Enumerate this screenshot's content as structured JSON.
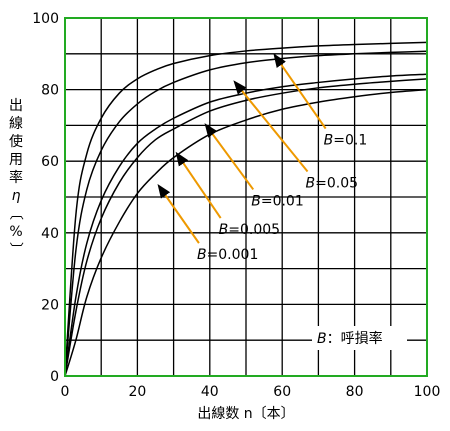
{
  "chart_data": {
    "type": "line",
    "xlabel": "出線数 n〔本〕",
    "ylabel": [
      "出",
      "線",
      "使",
      "用",
      "率",
      "η",
      "〔",
      "%",
      "〕"
    ],
    "xlim": [
      0,
      100
    ],
    "ylim": [
      0,
      100
    ],
    "xticks": [
      0,
      20,
      40,
      60,
      80,
      100
    ],
    "yticks": [
      0,
      20,
      40,
      60,
      80,
      100
    ],
    "grid": true,
    "legend_note": "B：呼損率",
    "series": [
      {
        "name": "B=0.1",
        "x": [
          0,
          3,
          6,
          10,
          15,
          20,
          25,
          30,
          40,
          50,
          60,
          70,
          80,
          90,
          100
        ],
        "y": [
          0,
          45,
          62,
          72,
          79,
          83,
          85.5,
          87.3,
          89.5,
          90.8,
          91.6,
          92.2,
          92.6,
          92.9,
          93.2
        ],
        "label": "B=0.1",
        "label_at": [
          72,
          68
        ],
        "arrow_to": [
          58,
          89.5
        ]
      },
      {
        "name": "B=0.05",
        "x": [
          0,
          3,
          6,
          10,
          15,
          20,
          25,
          30,
          40,
          50,
          60,
          70,
          80,
          90,
          100
        ],
        "y": [
          0,
          35,
          52,
          63,
          71,
          76,
          79.5,
          82,
          85.5,
          87.5,
          88.7,
          89.5,
          90,
          90.4,
          90.7
        ],
        "label": "B=0.05",
        "label_at": [
          67,
          56
        ],
        "arrow_to": [
          47,
          82
        ]
      },
      {
        "name": "B=0.01",
        "x": [
          0,
          3,
          6,
          10,
          15,
          20,
          25,
          30,
          40,
          50,
          60,
          70,
          80,
          90,
          100
        ],
        "y": [
          0,
          22,
          37,
          49,
          58.5,
          65,
          69,
          72,
          76.5,
          79,
          80.8,
          82,
          83,
          83.8,
          84.3
        ],
        "label": "B=0.01",
        "label_at": [
          52,
          51
        ],
        "arrow_to": [
          39,
          70
        ]
      },
      {
        "name": "B=0.005",
        "x": [
          0,
          3,
          6,
          10,
          15,
          20,
          25,
          30,
          40,
          50,
          60,
          70,
          80,
          90,
          100
        ],
        "y": [
          0,
          18,
          32,
          44,
          54,
          61,
          66,
          69,
          74,
          77,
          79,
          80.5,
          81.5,
          82.3,
          83
        ],
        "label": "B=0.005",
        "label_at": [
          43,
          43
        ],
        "arrow_to": [
          31,
          62
        ]
      },
      {
        "name": "B=0.001",
        "x": [
          0,
          3,
          6,
          10,
          15,
          20,
          25,
          30,
          40,
          50,
          60,
          70,
          80,
          90,
          100
        ],
        "y": [
          0,
          10,
          22,
          33,
          43,
          51,
          56.5,
          61,
          67.5,
          71.5,
          74.5,
          76.5,
          78,
          79.2,
          80
        ],
        "label": "B=0.001",
        "label_at": [
          37,
          36
        ],
        "arrow_to": [
          26,
          53
        ]
      }
    ],
    "colors": {
      "curve": "#000000",
      "grid": "#000000",
      "frame": "#22aa22",
      "arrow": "#ee9900"
    }
  }
}
